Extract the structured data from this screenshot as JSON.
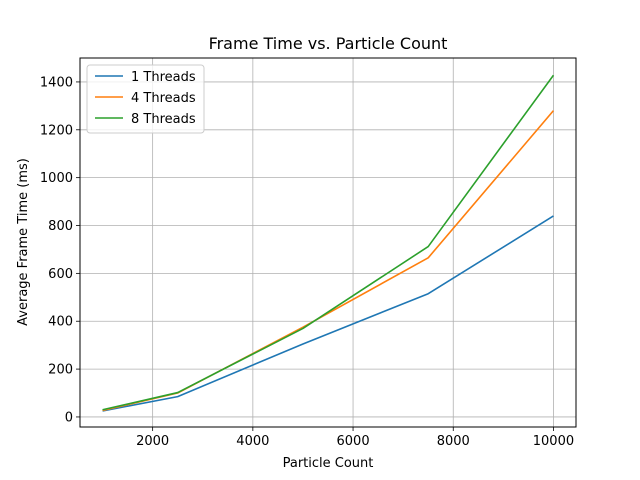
{
  "chart_data": {
    "type": "line",
    "title": "Frame Time vs. Particle Count",
    "xlabel": "Particle Count",
    "ylabel": "Average Frame Time (ms)",
    "x": [
      1000,
      2500,
      5000,
      7500,
      10000
    ],
    "xlim": [
      550,
      10450
    ],
    "ylim": [
      -42,
      1500
    ],
    "xticks": [
      2000,
      4000,
      6000,
      8000,
      10000
    ],
    "yticks": [
      0,
      200,
      400,
      600,
      800,
      1000,
      1200,
      1400
    ],
    "grid": true,
    "legend_position": "top-left",
    "series": [
      {
        "name": "1 Threads",
        "color": "#1f77b4",
        "values": [
          25,
          85,
          305,
          515,
          840
        ]
      },
      {
        "name": "4 Threads",
        "color": "#ff7f0e",
        "values": [
          27,
          100,
          375,
          665,
          1280
        ]
      },
      {
        "name": "8 Threads",
        "color": "#2ca02c",
        "values": [
          30,
          102,
          370,
          712,
          1428
        ]
      }
    ]
  }
}
